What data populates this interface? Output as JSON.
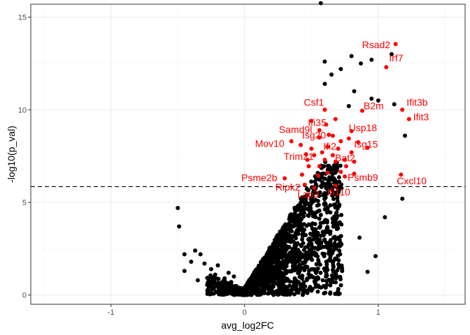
{
  "chart_data": {
    "type": "scatter",
    "xlabel": "avg_log2FC",
    "ylabel": "-log10(p_val)",
    "xlim": [
      -1.6,
      1.65
    ],
    "ylim": [
      -0.5,
      15.7
    ],
    "x_ticks": [
      -1,
      0,
      1
    ],
    "x_tick_labels": [
      "-1",
      "0",
      "1"
    ],
    "y_ticks": [
      0,
      5,
      10,
      15
    ],
    "y_tick_labels": [
      "0",
      "5",
      "10",
      "15"
    ],
    "threshold_y": 5.85,
    "grid": true,
    "colors": {
      "background_points": "#000000",
      "highlight": "#ff0000",
      "grid_major": "#ebebeb",
      "grid_minor": "#f5f5f5",
      "panel_border": "#333333",
      "threshold_line": "#000000"
    },
    "highlighted_genes": [
      {
        "label": "Rsad2",
        "x": 1.13,
        "y": 13.55
      },
      {
        "label": "Irf7",
        "x": 1.06,
        "y": 12.3
      },
      {
        "label": "Ifit3b",
        "x": 1.18,
        "y": 10.0
      },
      {
        "label": "Ifit3",
        "x": 1.23,
        "y": 9.5
      },
      {
        "label": "Csf1",
        "x": 0.6,
        "y": 10.0
      },
      {
        "label": "B2m",
        "x": 0.88,
        "y": 9.95
      },
      {
        "label": "Ifi35",
        "x": 0.61,
        "y": 9.2
      },
      {
        "label": "Usp18",
        "x": 0.8,
        "y": 8.85
      },
      {
        "label": "Samd9l",
        "x": 0.56,
        "y": 8.9
      },
      {
        "label": "Isg20",
        "x": 0.66,
        "y": 8.6
      },
      {
        "label": "Isg15",
        "x": 0.85,
        "y": 8.25
      },
      {
        "label": "Mov10",
        "x": 0.35,
        "y": 8.3
      },
      {
        "label": "Ifi2",
        "x": 0.62,
        "y": 8.0
      },
      {
        "label": "Trim21",
        "x": 0.47,
        "y": 7.3
      },
      {
        "label": "Bat2",
        "x": 0.75,
        "y": 7.3
      },
      {
        "label": "Psme2b",
        "x": 0.3,
        "y": 6.3
      },
      {
        "label": "Psmb9",
        "x": 0.75,
        "y": 6.4
      },
      {
        "label": "Cxcl10",
        "x": 1.17,
        "y": 6.5
      },
      {
        "label": "Ripk2",
        "x": 0.45,
        "y": 5.95
      },
      {
        "label": "Lap3",
        "x": 0.52,
        "y": 5.8
      },
      {
        "label": "Ifi110",
        "x": 0.68,
        "y": 5.9
      }
    ],
    "extra_red_points": [
      [
        0.5,
        9.4
      ],
      [
        0.68,
        9.5
      ],
      [
        0.56,
        8.5
      ],
      [
        0.63,
        8.65
      ],
      [
        0.72,
        8.3
      ],
      [
        0.78,
        8.45
      ],
      [
        0.42,
        8.1
      ],
      [
        0.5,
        7.9
      ],
      [
        0.58,
        7.7
      ],
      [
        0.7,
        7.9
      ],
      [
        0.8,
        7.7
      ],
      [
        0.92,
        7.95
      ],
      [
        0.46,
        7.6
      ],
      [
        0.52,
        7.55
      ],
      [
        0.6,
        7.3
      ],
      [
        0.68,
        7.2
      ],
      [
        0.82,
        7.2
      ],
      [
        0.48,
        6.95
      ],
      [
        0.56,
        6.95
      ],
      [
        0.62,
        6.6
      ],
      [
        0.72,
        6.65
      ],
      [
        0.82,
        6.55
      ],
      [
        0.55,
        6.45
      ],
      [
        0.43,
        6.5
      ],
      [
        0.66,
        7.55
      ],
      [
        0.76,
        6.95
      ]
    ],
    "black_outliers": [
      [
        0.57,
        15.75
      ],
      [
        1.1,
        13.0
      ],
      [
        0.95,
        12.7
      ],
      [
        0.8,
        12.9
      ],
      [
        0.6,
        12.6
      ],
      [
        0.87,
        12.5
      ],
      [
        0.72,
        12.2
      ],
      [
        0.65,
        11.9
      ],
      [
        0.6,
        11.4
      ],
      [
        0.82,
        11.0
      ],
      [
        0.95,
        10.6
      ],
      [
        1.0,
        10.5
      ],
      [
        1.12,
        10.3
      ],
      [
        0.78,
        10.2
      ],
      [
        1.2,
        8.6
      ],
      [
        1.18,
        5.2
      ],
      [
        1.05,
        4.2
      ],
      [
        0.98,
        2.1
      ],
      [
        0.92,
        1.25
      ],
      [
        0.86,
        3.1
      ],
      [
        0.64,
        3.3
      ],
      [
        0.72,
        2.7
      ],
      [
        0.55,
        2.8
      ],
      [
        -0.5,
        4.7
      ],
      [
        -0.49,
        3.7
      ],
      [
        -0.45,
        2.2
      ],
      [
        -0.4,
        1.8
      ],
      [
        -0.37,
        2.4
      ],
      [
        -0.33,
        2.2
      ],
      [
        -0.3,
        1.7
      ],
      [
        -0.25,
        1.4
      ],
      [
        -0.22,
        1.1
      ],
      [
        -0.2,
        1.6
      ],
      [
        -0.15,
        0.9
      ],
      [
        -0.12,
        1.2
      ],
      [
        -0.35,
        0.8
      ],
      [
        -0.28,
        0.55
      ],
      [
        -0.18,
        0.6
      ],
      [
        -0.45,
        1.3
      ],
      [
        -0.1,
        0.7
      ],
      [
        -0.08,
        1.0
      ]
    ]
  }
}
